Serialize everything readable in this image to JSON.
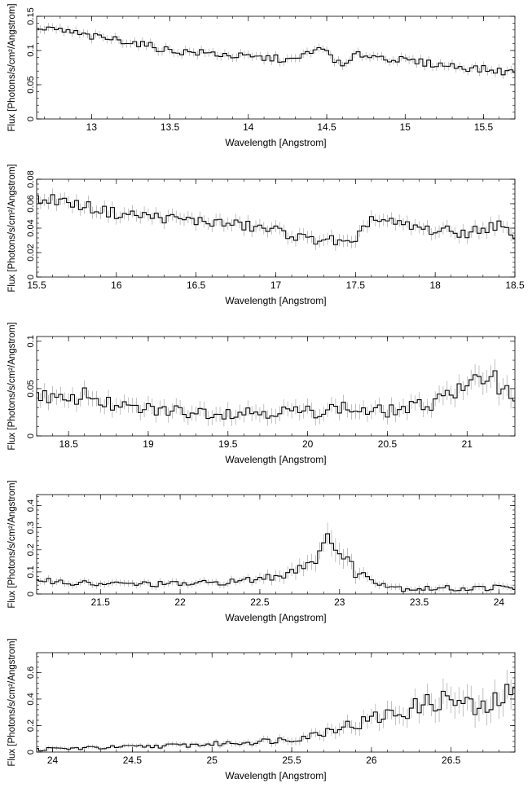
{
  "chart_data": [
    {
      "type": "line",
      "xlabel": "Wavelength [Angstrom]",
      "ylabel": "Flux [Photons/s/cm²/Angstrom]",
      "xlim": [
        12.65,
        15.7
      ],
      "ylim": [
        0,
        0.15
      ],
      "xticks": [
        13,
        13.5,
        14,
        14.5,
        15,
        15.5
      ],
      "yticks": [
        0,
        0.05,
        0.1,
        0.15
      ],
      "grid": false,
      "series": [
        {
          "x": [
            12.65,
            12.8,
            13.0,
            13.2,
            13.3,
            13.4,
            13.5,
            13.6,
            13.8,
            14.0,
            14.2,
            14.3,
            14.4,
            14.5,
            14.6,
            14.7,
            14.8,
            15.0,
            15.2,
            15.4,
            15.6,
            15.7
          ],
          "values": [
            0.13,
            0.13,
            0.12,
            0.115,
            0.11,
            0.105,
            0.1,
            0.098,
            0.095,
            0.09,
            0.088,
            0.085,
            0.1,
            0.1,
            0.075,
            0.095,
            0.092,
            0.085,
            0.08,
            0.075,
            0.07,
            0.068
          ],
          "errors": [
            0.006,
            0.006,
            0.006,
            0.006,
            0.006,
            0.006,
            0.006,
            0.006,
            0.006,
            0.006,
            0.006,
            0.006,
            0.006,
            0.006,
            0.006,
            0.006,
            0.006,
            0.006,
            0.006,
            0.006,
            0.006,
            0.006
          ]
        }
      ]
    },
    {
      "type": "line",
      "xlabel": "Wavelength [Angstrom]",
      "ylabel": "Flux [Photons/s/cm²/Angstrom]",
      "xlim": [
        15.5,
        18.5
      ],
      "ylim": [
        0,
        0.08
      ],
      "xticks": [
        15.5,
        16,
        16.5,
        17,
        17.5,
        18,
        18.5
      ],
      "yticks": [
        0,
        0.02,
        0.04,
        0.06,
        0.08
      ],
      "yticklabels": [
        "0",
        "0.02",
        "0.04",
        "0.06",
        "0.08"
      ],
      "grid": false,
      "series": [
        {
          "x": [
            15.5,
            15.6,
            15.8,
            16.0,
            16.2,
            16.4,
            16.6,
            16.8,
            17.0,
            17.1,
            17.2,
            17.3,
            17.4,
            17.5,
            17.55,
            17.6,
            17.8,
            18.0,
            18.2,
            18.4,
            18.5
          ],
          "values": [
            0.062,
            0.064,
            0.058,
            0.052,
            0.05,
            0.047,
            0.045,
            0.042,
            0.038,
            0.035,
            0.03,
            0.032,
            0.028,
            0.025,
            0.042,
            0.048,
            0.042,
            0.038,
            0.036,
            0.043,
            0.03
          ],
          "errors": [
            0.005,
            0.005,
            0.005,
            0.005,
            0.005,
            0.005,
            0.005,
            0.005,
            0.005,
            0.005,
            0.005,
            0.005,
            0.005,
            0.005,
            0.005,
            0.005,
            0.005,
            0.005,
            0.005,
            0.005,
            0.005
          ]
        }
      ]
    },
    {
      "type": "line",
      "xlabel": "Wavelength [Angstrom]",
      "ylabel": "Flux [Photons/s/cm²/Angstrom]",
      "xlim": [
        18.3,
        21.3
      ],
      "ylim": [
        0,
        0.105
      ],
      "xticks": [
        18.5,
        19,
        19.5,
        20,
        20.5,
        21
      ],
      "yticks": [
        0,
        0.05,
        0.1
      ],
      "grid": false,
      "series": [
        {
          "x": [
            18.3,
            18.5,
            18.6,
            18.8,
            19.0,
            19.2,
            19.5,
            19.8,
            20.0,
            20.2,
            20.4,
            20.6,
            20.8,
            20.85,
            20.9,
            21.0,
            21.1,
            21.15,
            21.2,
            21.3
          ],
          "values": [
            0.045,
            0.035,
            0.045,
            0.03,
            0.028,
            0.026,
            0.025,
            0.026,
            0.025,
            0.03,
            0.025,
            0.028,
            0.035,
            0.05,
            0.045,
            0.05,
            0.06,
            0.07,
            0.055,
            0.04
          ],
          "errors": [
            0.008,
            0.008,
            0.008,
            0.008,
            0.008,
            0.008,
            0.008,
            0.008,
            0.008,
            0.008,
            0.008,
            0.008,
            0.008,
            0.01,
            0.01,
            0.01,
            0.012,
            0.012,
            0.012,
            0.01
          ]
        }
      ]
    },
    {
      "type": "line",
      "xlabel": "Wavelength [Angstrom]",
      "ylabel": "Flux [Photons/s/cm²/Angstrom]",
      "xlim": [
        21.1,
        24.1
      ],
      "ylim": [
        0,
        0.45
      ],
      "xticks": [
        21.5,
        22,
        22.5,
        23,
        23.5,
        24
      ],
      "yticks": [
        0,
        0.1,
        0.2,
        0.3,
        0.4
      ],
      "grid": false,
      "series": [
        {
          "x": [
            21.1,
            21.3,
            21.5,
            21.8,
            22.0,
            22.2,
            22.4,
            22.5,
            22.6,
            22.7,
            22.8,
            22.9,
            22.95,
            23.0,
            23.05,
            23.1,
            23.2,
            23.3,
            23.4,
            23.6,
            23.8,
            24.0,
            24.1
          ],
          "values": [
            0.07,
            0.05,
            0.045,
            0.045,
            0.045,
            0.05,
            0.06,
            0.07,
            0.08,
            0.11,
            0.14,
            0.2,
            0.28,
            0.18,
            0.15,
            0.1,
            0.07,
            0.04,
            0.025,
            0.025,
            0.025,
            0.03,
            0.025
          ],
          "errors": [
            0.015,
            0.015,
            0.015,
            0.015,
            0.015,
            0.015,
            0.015,
            0.02,
            0.025,
            0.03,
            0.035,
            0.04,
            0.06,
            0.05,
            0.04,
            0.03,
            0.02,
            0.015,
            0.015,
            0.015,
            0.015,
            0.015,
            0.015
          ]
        }
      ]
    },
    {
      "type": "line",
      "xlabel": "Wavelength [Angstrom]",
      "ylabel": "Flux [Photons/s/cm²/Angstrom]",
      "xlim": [
        23.9,
        26.9
      ],
      "ylim": [
        0,
        0.75
      ],
      "xticks": [
        24,
        24.5,
        25,
        25.5,
        26,
        26.5
      ],
      "yticks": [
        0,
        0.2,
        0.4,
        0.6
      ],
      "grid": false,
      "series": [
        {
          "x": [
            23.9,
            24.2,
            24.5,
            24.8,
            25.0,
            25.3,
            25.5,
            25.6,
            25.7,
            25.8,
            25.9,
            26.0,
            26.1,
            26.2,
            26.3,
            26.4,
            26.5,
            26.6,
            26.7,
            26.8,
            26.9
          ],
          "values": [
            0.02,
            0.03,
            0.04,
            0.05,
            0.06,
            0.08,
            0.1,
            0.12,
            0.15,
            0.2,
            0.2,
            0.25,
            0.28,
            0.3,
            0.35,
            0.38,
            0.4,
            0.35,
            0.3,
            0.4,
            0.45
          ],
          "errors": [
            0.015,
            0.015,
            0.015,
            0.02,
            0.02,
            0.025,
            0.03,
            0.03,
            0.04,
            0.05,
            0.05,
            0.06,
            0.07,
            0.07,
            0.08,
            0.09,
            0.1,
            0.1,
            0.1,
            0.1,
            0.12
          ]
        }
      ]
    }
  ]
}
